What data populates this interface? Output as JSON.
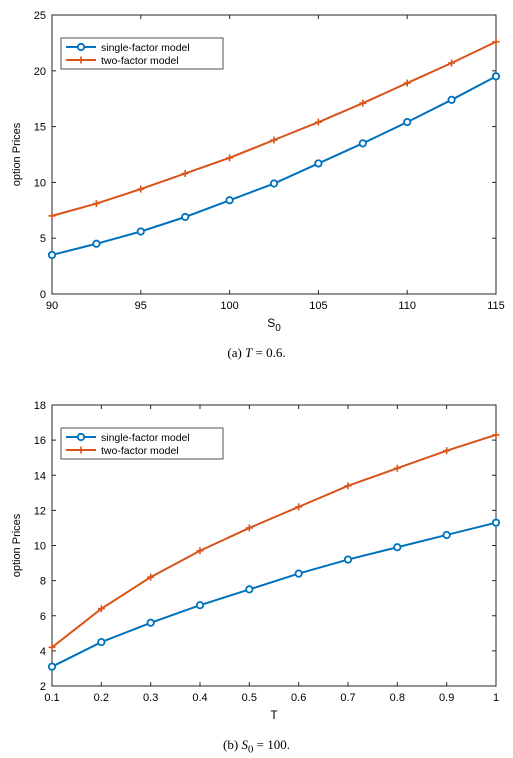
{
  "chart_data": [
    {
      "type": "line",
      "xlabel": "S",
      "xlabel_sub": "0",
      "ylabel": "option Prices",
      "xlim": [
        90,
        115
      ],
      "ylim": [
        0,
        25
      ],
      "x_ticks": [
        "90",
        "95",
        "100",
        "105",
        "110",
        "115"
      ],
      "y_ticks": [
        "0",
        "5",
        "10",
        "15",
        "20",
        "25"
      ],
      "legend_position": "top-left",
      "grid": false,
      "x": [
        90,
        92.5,
        95,
        97.5,
        100,
        102.5,
        105,
        107.5,
        110,
        112.5,
        115
      ],
      "series": [
        {
          "name": "single-factor model",
          "color": "#0072BD",
          "marker": "circle",
          "values": [
            3.5,
            4.5,
            5.6,
            6.9,
            8.4,
            9.9,
            11.7,
            13.5,
            15.4,
            17.4,
            19.5
          ]
        },
        {
          "name": "two-factor model",
          "color": "#D95319",
          "marker": "plus",
          "values": [
            7.0,
            8.1,
            9.4,
            10.8,
            12.2,
            13.8,
            15.4,
            17.1,
            18.9,
            20.7,
            22.6
          ]
        }
      ],
      "caption_prefix": "(a)",
      "caption_var": "T",
      "caption_rest": " = 0.6."
    },
    {
      "type": "line",
      "xlabel": "T",
      "xlabel_sub": "",
      "ylabel": "option Prices",
      "xlim": [
        0.1,
        1
      ],
      "ylim": [
        2,
        18
      ],
      "x_ticks": [
        "0.1",
        "0.2",
        "0.3",
        "0.4",
        "0.5",
        "0.6",
        "0.7",
        "0.8",
        "0.9",
        "1"
      ],
      "y_ticks": [
        "2",
        "4",
        "6",
        "8",
        "10",
        "12",
        "14",
        "16",
        "18"
      ],
      "legend_position": "top-left",
      "grid": false,
      "x": [
        0.1,
        0.2,
        0.3,
        0.4,
        0.5,
        0.6,
        0.7,
        0.8,
        0.9,
        1.0
      ],
      "series": [
        {
          "name": "single-factor model",
          "color": "#0072BD",
          "marker": "circle",
          "values": [
            3.1,
            4.5,
            5.6,
            6.6,
            7.5,
            8.4,
            9.2,
            9.9,
            10.6,
            11.3
          ]
        },
        {
          "name": "two-factor model",
          "color": "#D95319",
          "marker": "plus",
          "values": [
            4.2,
            6.4,
            8.2,
            9.7,
            11.0,
            12.2,
            13.4,
            14.4,
            15.4,
            16.3
          ]
        }
      ],
      "caption_prefix": "(b)",
      "caption_var": "S",
      "caption_var_sub": "0",
      "caption_rest": " = 100."
    }
  ]
}
